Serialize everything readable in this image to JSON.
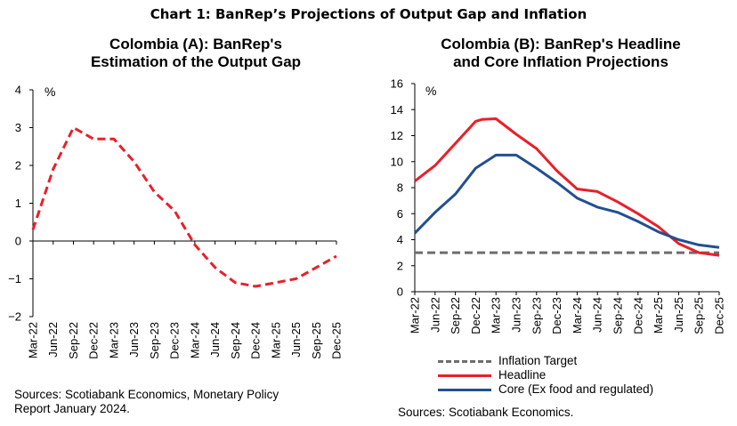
{
  "main_title": "Chart 1: BanRep’s Projections of Output Gap and Inflation",
  "chart_data": [
    {
      "type": "line",
      "title_lines": [
        "Colombia (A): BanRep's",
        "Estimation of the Output Gap"
      ],
      "unit_label": "%",
      "x": [
        "Mar-22",
        "Jun-22",
        "Sep-22",
        "Dec-22",
        "Mar-23",
        "Jun-23",
        "Sep-23",
        "Dec-23",
        "Mar-24",
        "Jun-24",
        "Sep-24",
        "Dec-24",
        "Mar-25",
        "Jun-25",
        "Sep-25",
        "Dec-25"
      ],
      "x_ticks": [
        "Mar-22",
        "Jun-22",
        "Sep-22",
        "Dec-22",
        "Mar-23",
        "Jun-23",
        "Sep-23",
        "Dec-23",
        "Mar-24",
        "Jun-24",
        "Sep-24",
        "Dec-24",
        "Mar-25",
        "Jun-25",
        "Sep-25",
        "Dec-25"
      ],
      "ylim": [
        -2,
        4
      ],
      "yticks": [
        -2,
        -1,
        0,
        1,
        2,
        3,
        4
      ],
      "grid": false,
      "series": [
        {
          "values": [
            0.3,
            1.9,
            3.0,
            2.7,
            2.7,
            2.1,
            1.3,
            0.8,
            -0.1,
            -0.7,
            -1.1,
            -1.2,
            -1.1,
            -1.0,
            -0.7,
            -0.4
          ],
          "color": "#e8202a",
          "dash": "dashed"
        }
      ],
      "source": [
        "Sources: Scotiabank Economics, Monetary Policy",
        "Report January 2024."
      ]
    },
    {
      "type": "line",
      "title_lines": [
        "Colombia (B): BanRep's Headline",
        "and Core Inflation Projections"
      ],
      "unit_label": "%",
      "x": [
        "Mar-22",
        "Jun-22",
        "Sep-22",
        "Dec-22",
        "Mar-23",
        "Jun-23",
        "Sep-23",
        "Dec-23",
        "Mar-24",
        "Jun-24",
        "Sep-24",
        "Dec-24",
        "Mar-25",
        "Jun-25",
        "Sep-25",
        "Dec-25"
      ],
      "ylim": [
        0,
        16
      ],
      "yticks": [
        0,
        2,
        4,
        6,
        8,
        10,
        12,
        14,
        16
      ],
      "grid": false,
      "series": [
        {
          "name": "Inflation Target",
          "values": [
            3,
            3,
            3,
            3,
            3,
            3,
            3,
            3,
            3,
            3,
            3,
            3,
            3,
            3,
            3,
            3
          ],
          "color": "#6d6d6d",
          "dash": "dashed"
        },
        {
          "name": "Headline",
          "color": "#e8202a",
          "dash": "solid",
          "points": [
            [
              "Mar-22",
              8.5
            ],
            [
              "Jun-22",
              9.7
            ],
            [
              "Sep-22",
              11.4
            ],
            [
              "Dec-22",
              13.1
            ],
            [
              "Jan-23",
              13.25
            ],
            [
              "Mar-23",
              13.3
            ],
            [
              "Jun-23",
              12.1
            ],
            [
              "Sep-23",
              11.0
            ],
            [
              "Dec-23",
              9.3
            ],
            [
              "Mar-24",
              7.9
            ],
            [
              "Jun-24",
              7.7
            ],
            [
              "Sep-24",
              6.9
            ],
            [
              "Dec-24",
              6.0
            ],
            [
              "Mar-25",
              5.0
            ],
            [
              "Jun-25",
              3.7
            ],
            [
              "Sep-25",
              3.0
            ],
            [
              "Dec-25",
              2.8
            ]
          ]
        },
        {
          "name": "Core (Ex food and regulated)",
          "color": "#22508f",
          "dash": "solid",
          "points": [
            [
              "Mar-22",
              4.5
            ],
            [
              "Jun-22",
              6.1
            ],
            [
              "Sep-22",
              7.5
            ],
            [
              "Dec-22",
              9.5
            ],
            [
              "Mar-23",
              10.5
            ],
            [
              "Jun-23",
              10.5
            ],
            [
              "Sep-23",
              9.5
            ],
            [
              "Dec-23",
              8.4
            ],
            [
              "Mar-24",
              7.2
            ],
            [
              "Jun-24",
              6.5
            ],
            [
              "Sep-24",
              6.1
            ],
            [
              "Dec-24",
              5.4
            ],
            [
              "Mar-25",
              4.6
            ],
            [
              "Jun-25",
              4.0
            ],
            [
              "Sep-25",
              3.6
            ],
            [
              "Dec-25",
              3.4
            ]
          ]
        }
      ],
      "legend_placement": "bottom",
      "source": [
        "Sources: Scotiabank Economics."
      ]
    }
  ]
}
